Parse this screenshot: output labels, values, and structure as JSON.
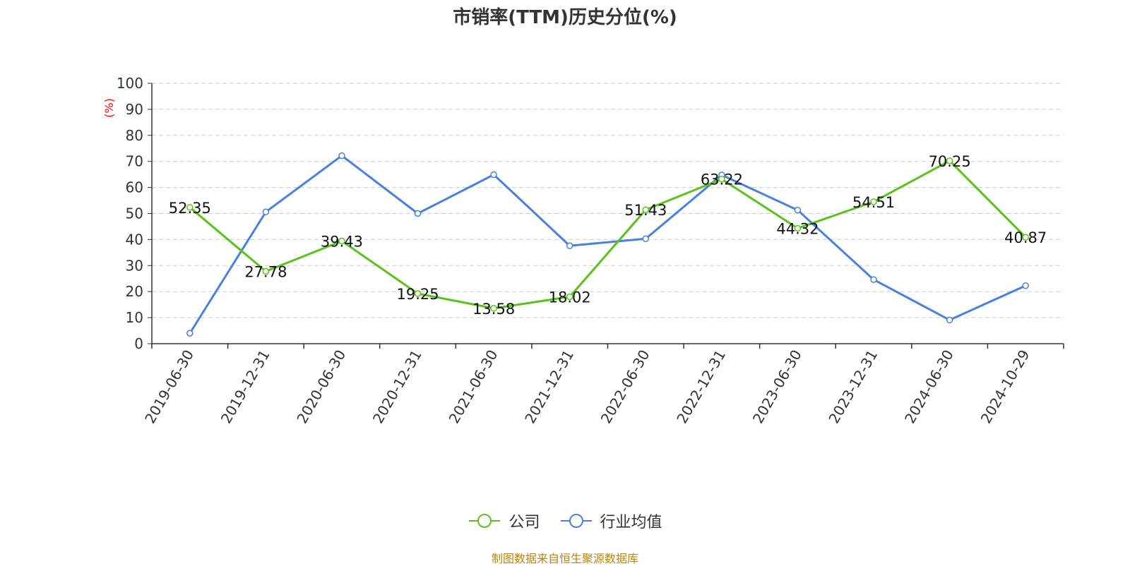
{
  "chart_data": {
    "type": "line",
    "title": "市销率(TTM)历史分位(%)",
    "ylabel": "(%)",
    "ylim": [
      0,
      100
    ],
    "yticks": [
      0,
      10,
      20,
      30,
      40,
      50,
      60,
      70,
      80,
      90,
      100
    ],
    "categories": [
      "2019-06-30",
      "2019-12-31",
      "2020-06-30",
      "2020-12-31",
      "2021-06-30",
      "2021-12-31",
      "2022-06-30",
      "2022-12-31",
      "2023-06-30",
      "2023-12-31",
      "2024-06-30",
      "2024-10-29"
    ],
    "grid": true,
    "legend_position": "bottom",
    "series": [
      {
        "name": "公司",
        "color": "#5ac21c",
        "labeled": true,
        "values": [
          52.35,
          27.78,
          39.43,
          19.25,
          13.58,
          18.02,
          51.43,
          63.22,
          44.32,
          54.51,
          70.25,
          40.87
        ]
      },
      {
        "name": "行业均值",
        "color": "#4a80e0",
        "labeled": false,
        "values": [
          4.0,
          50.6,
          72.2,
          50.0,
          64.9,
          37.6,
          40.3,
          64.8,
          51.3,
          24.6,
          9.1,
          22.3
        ]
      }
    ]
  },
  "footer": {
    "source": "制图数据来自恒生聚源数据库"
  }
}
